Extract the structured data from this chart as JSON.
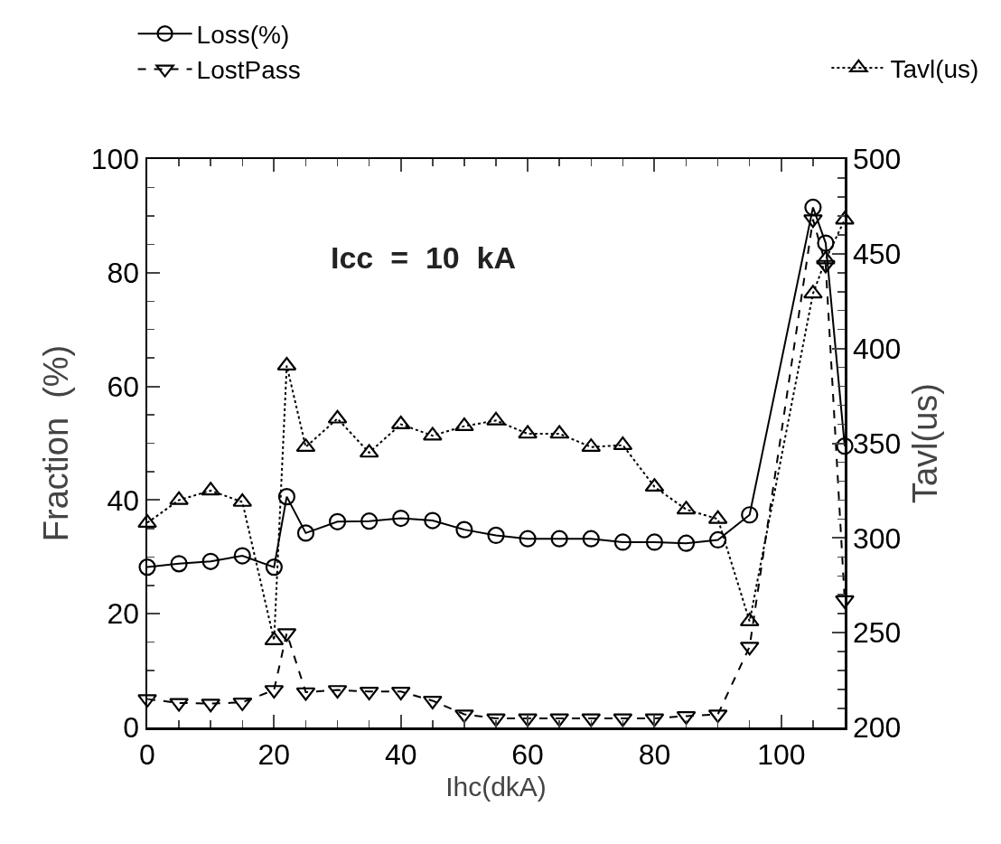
{
  "chart_data": {
    "type": "line",
    "xlabel": "Ihc(dkA)",
    "ylabel": "Fraction  (%)",
    "y2label": "Tavl(us)",
    "x": [
      0,
      5,
      10,
      15,
      20,
      22,
      25,
      30,
      35,
      40,
      45,
      50,
      55,
      60,
      65,
      70,
      75,
      80,
      85,
      90,
      95,
      105,
      107,
      110
    ],
    "series": [
      {
        "name": "Loss(%)",
        "color": "#000000",
        "marker": "circle",
        "line_style": "solid",
        "values": [
          28.2,
          28.8,
          29.2,
          30.2,
          28.2,
          40.6,
          34.2,
          36.2,
          36.3,
          36.8,
          36.4,
          34.8,
          33.8,
          33.2,
          33.2,
          33.2,
          32.6,
          32.6,
          32.4,
          33.0,
          37.4,
          91.5,
          85.2,
          49.5
        ]
      },
      {
        "name": "LostPass",
        "color": "#000000",
        "marker": "triangle-down",
        "line_style": "dashed",
        "values": [
          5.0,
          4.3,
          4.2,
          4.4,
          6.6,
          16.6,
          6.2,
          6.6,
          6.3,
          6.3,
          4.7,
          2.3,
          1.6,
          1.6,
          1.6,
          1.6,
          1.6,
          1.6,
          2.0,
          2.3,
          14.2,
          89.4,
          81.4,
          22.4
        ]
      },
      {
        "name": "Tavl(us)",
        "color": "#000000",
        "marker": "triangle",
        "line_style": "dotted",
        "axis": "y2",
        "values": [
          308,
          320,
          325,
          319,
          246,
          391,
          348,
          363,
          345,
          360,
          354,
          359,
          362,
          355,
          355,
          348,
          349,
          327,
          315,
          310,
          256,
          429,
          447,
          468
        ]
      }
    ],
    "xlim": [
      0,
      110
    ],
    "xticks": [
      0,
      20,
      40,
      60,
      80,
      100
    ],
    "ylim": [
      0,
      100
    ],
    "yticks": [
      0,
      20,
      40,
      60,
      80,
      100
    ],
    "y2lim": [
      200,
      500
    ],
    "y2ticks": [
      200,
      250,
      300,
      350,
      400,
      450,
      500
    ],
    "annotations": [
      "Icc  =  10  kA"
    ],
    "legend": "top",
    "grid": false
  }
}
